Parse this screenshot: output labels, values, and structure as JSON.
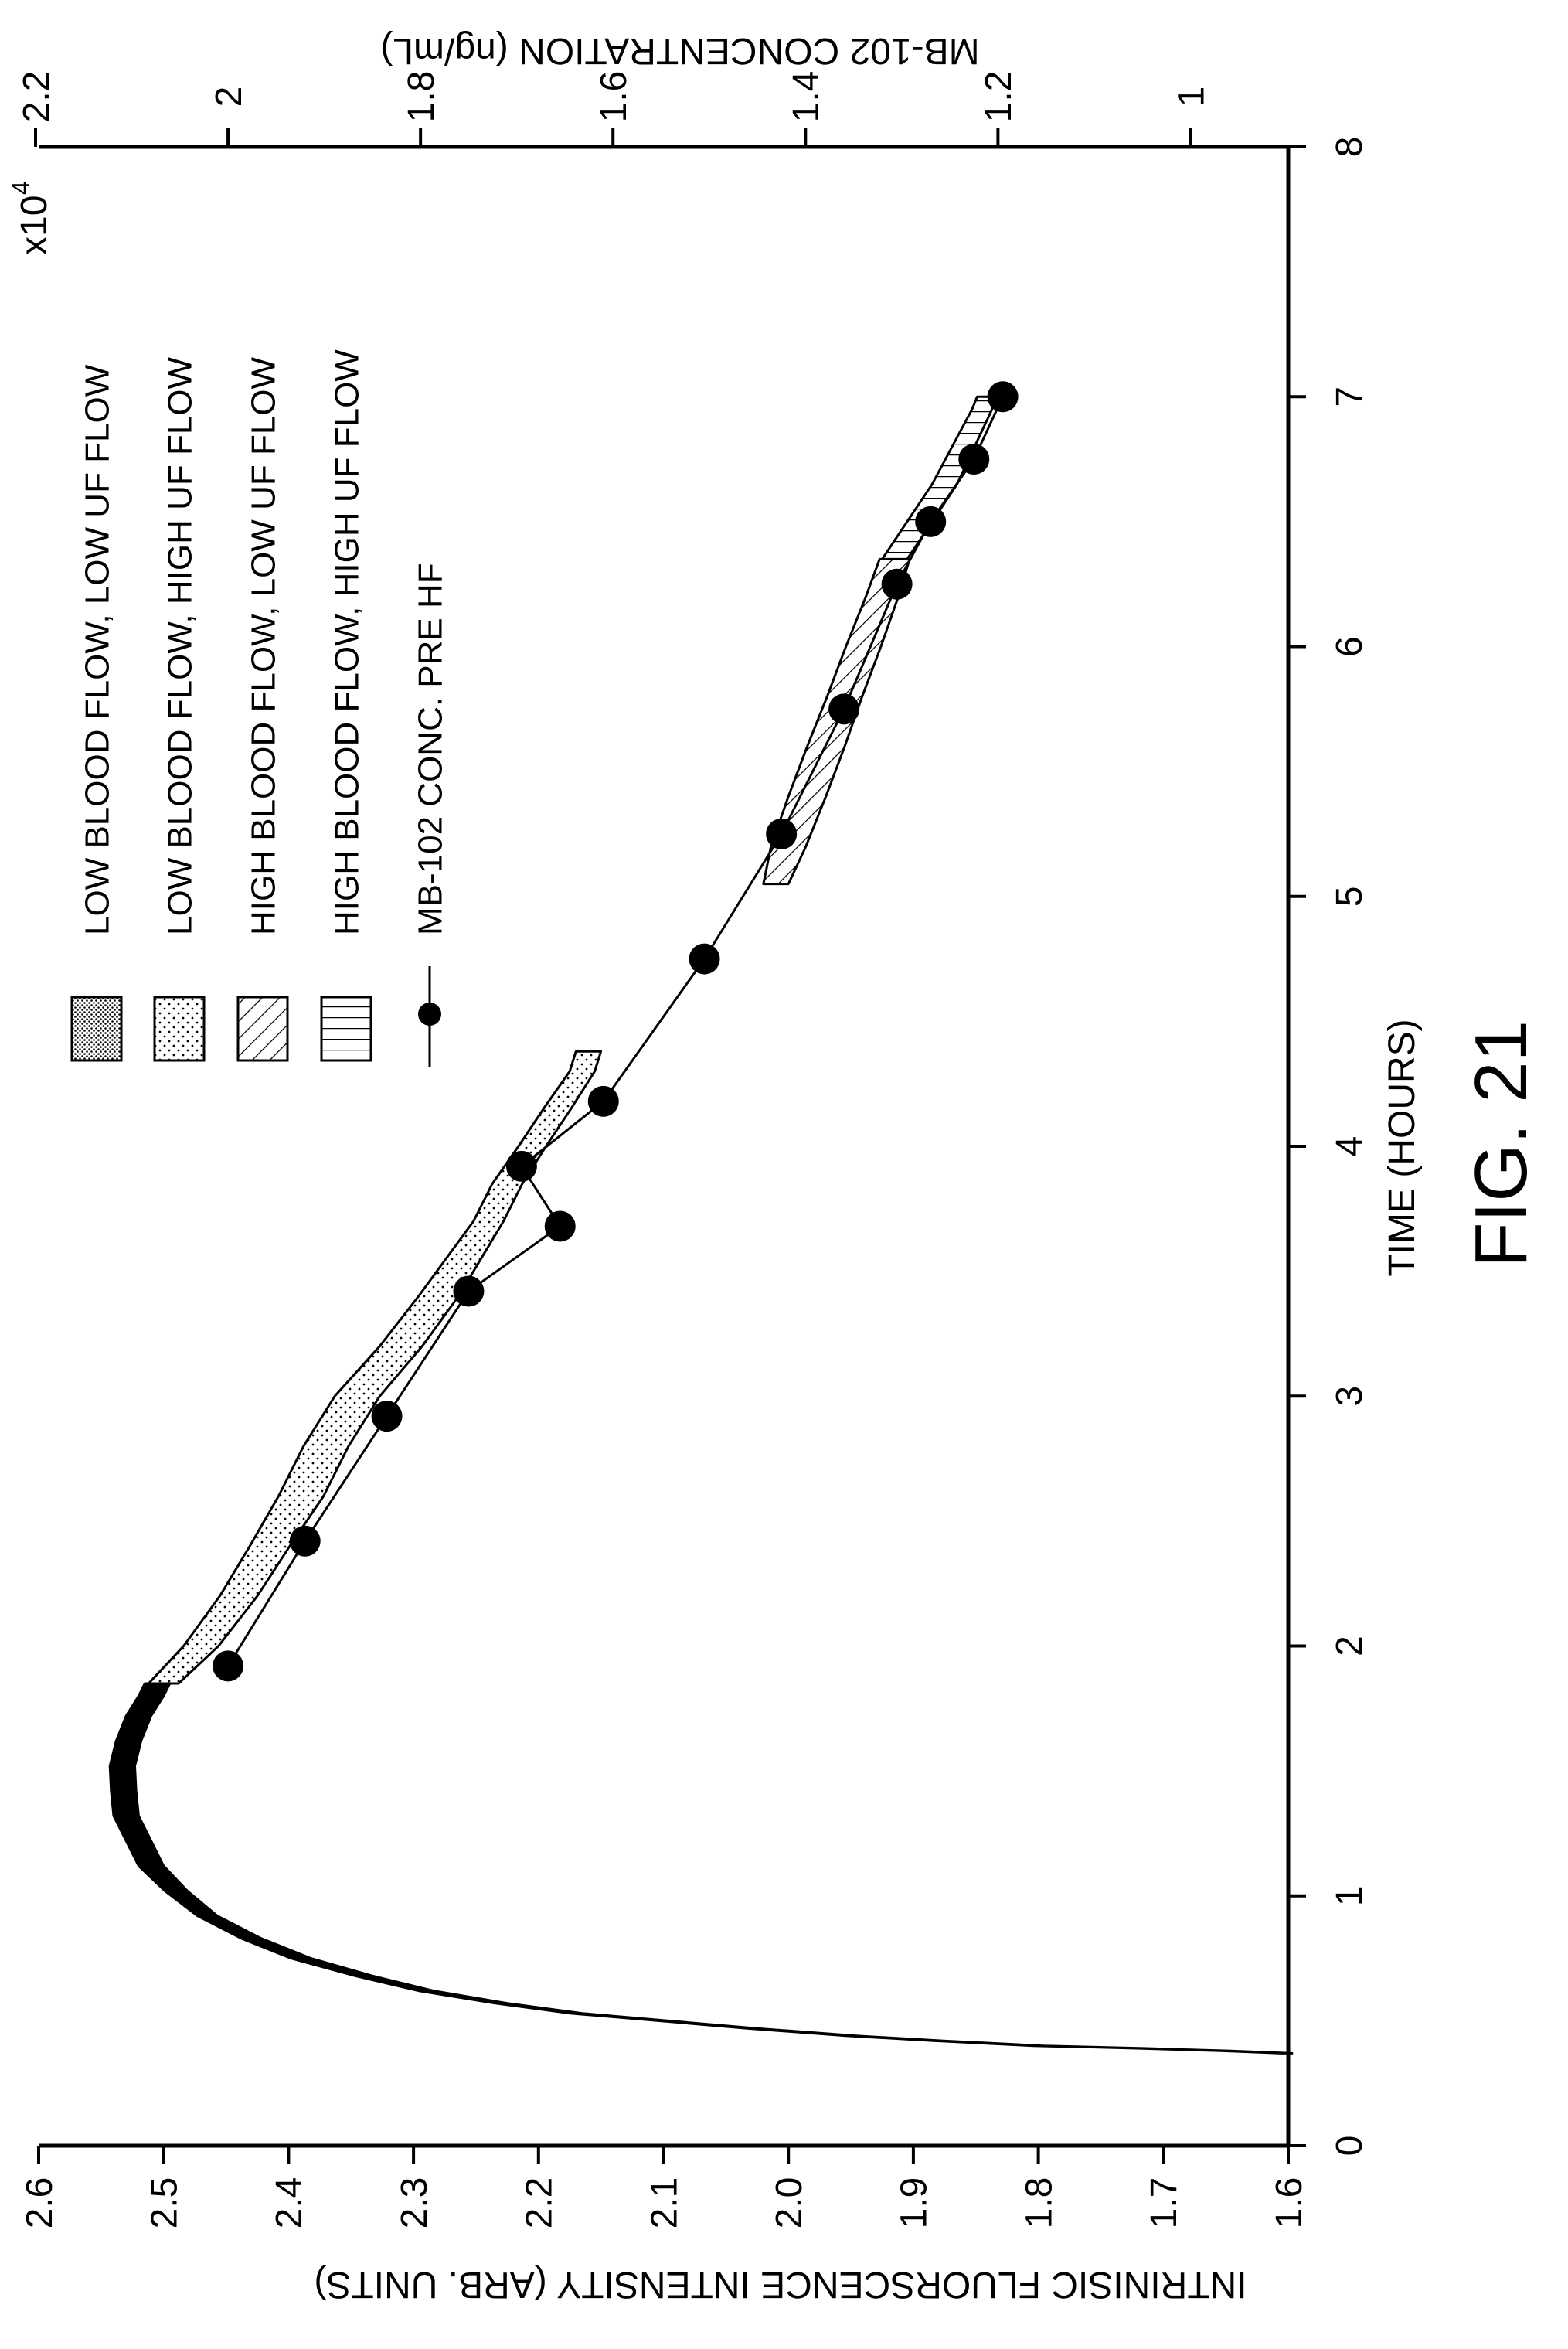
{
  "figure_label": "FIG. 21",
  "chart_data": {
    "type": "line",
    "xlabel": "TIME (HOURS)",
    "ylabel": "INTRINISIC FLUORSCENCE INTENSITY (ARB. UNITS)",
    "y2label": "MB-102 CONCENTRATION (ng/mL)",
    "y_multiplier": "x10",
    "y_multiplier_exp": "4",
    "xlim": [
      0,
      8
    ],
    "ylim": [
      1.6,
      2.6
    ],
    "y2lim": [
      0.9,
      2.2
    ],
    "x_ticks": [
      "0",
      "1",
      "2",
      "3",
      "4",
      "5",
      "6",
      "7",
      "8"
    ],
    "y_ticks": [
      "1.6",
      "1.7",
      "1.8",
      "1.9",
      "2.0",
      "2.1",
      "2.2",
      "2.3",
      "2.4",
      "2.5",
      "2.6"
    ],
    "y2_ticks": [
      "1",
      "1.2",
      "1.4",
      "1.6",
      "1.8",
      "2",
      "2.2"
    ],
    "grid": false,
    "legend_position": "top-left",
    "series": [
      {
        "name": "LOW BLOOD FLOW, LOW UF FLOW",
        "pattern": "dense-dots",
        "band": [
          {
            "x": 0.37,
            "y": 1.601,
            "w": 0.004
          },
          {
            "x": 0.38,
            "y": 1.65,
            "w": 0.004
          },
          {
            "x": 0.39,
            "y": 1.72,
            "w": 0.004
          },
          {
            "x": 0.4,
            "y": 1.8,
            "w": 0.004
          },
          {
            "x": 0.42,
            "y": 1.88,
            "w": 0.004
          },
          {
            "x": 0.44,
            "y": 1.95,
            "w": 0.004
          },
          {
            "x": 0.47,
            "y": 2.03,
            "w": 0.004
          },
          {
            "x": 0.5,
            "y": 2.1,
            "w": 0.004
          },
          {
            "x": 0.53,
            "y": 2.17,
            "w": 0.005
          },
          {
            "x": 0.57,
            "y": 2.23,
            "w": 0.005
          },
          {
            "x": 0.62,
            "y": 2.29,
            "w": 0.006
          },
          {
            "x": 0.68,
            "y": 2.34,
            "w": 0.007
          },
          {
            "x": 0.75,
            "y": 2.39,
            "w": 0.008
          },
          {
            "x": 0.83,
            "y": 2.43,
            "w": 0.008
          },
          {
            "x": 0.92,
            "y": 2.465,
            "w": 0.008
          },
          {
            "x": 1.02,
            "y": 2.49,
            "w": 0.009
          },
          {
            "x": 1.12,
            "y": 2.51,
            "w": 0.01
          },
          {
            "x": 1.22,
            "y": 2.52,
            "w": 0.01
          },
          {
            "x": 1.32,
            "y": 2.53,
            "w": 0.01
          },
          {
            "x": 1.42,
            "y": 2.532,
            "w": 0.01
          },
          {
            "x": 1.52,
            "y": 2.533,
            "w": 0.01
          },
          {
            "x": 1.62,
            "y": 2.528,
            "w": 0.01
          },
          {
            "x": 1.72,
            "y": 2.52,
            "w": 0.01
          },
          {
            "x": 1.8,
            "y": 2.51,
            "w": 0.01
          },
          {
            "x": 1.85,
            "y": 2.505,
            "w": 0.01
          }
        ]
      },
      {
        "name": "LOW BLOOD FLOW, HIGH UF FLOW",
        "pattern": "sparse-dots",
        "band": [
          {
            "x": 1.85,
            "y": 2.5,
            "w": 0.012
          },
          {
            "x": 2.0,
            "y": 2.47,
            "w": 0.014
          },
          {
            "x": 2.2,
            "y": 2.44,
            "w": 0.015
          },
          {
            "x": 2.4,
            "y": 2.415,
            "w": 0.016
          },
          {
            "x": 2.6,
            "y": 2.39,
            "w": 0.018
          },
          {
            "x": 2.8,
            "y": 2.37,
            "w": 0.018
          },
          {
            "x": 3.0,
            "y": 2.345,
            "w": 0.018
          },
          {
            "x": 3.2,
            "y": 2.31,
            "w": 0.017
          },
          {
            "x": 3.4,
            "y": 2.28,
            "w": 0.016
          },
          {
            "x": 3.55,
            "y": 2.26,
            "w": 0.014
          },
          {
            "x": 3.7,
            "y": 2.24,
            "w": 0.012
          },
          {
            "x": 3.85,
            "y": 2.225,
            "w": 0.012
          },
          {
            "x": 4.0,
            "y": 2.205,
            "w": 0.011
          },
          {
            "x": 4.15,
            "y": 2.185,
            "w": 0.011
          },
          {
            "x": 4.3,
            "y": 2.165,
            "w": 0.01
          },
          {
            "x": 4.38,
            "y": 2.16,
            "w": 0.01
          }
        ]
      },
      {
        "name": "HIGH BLOOD FLOW, LOW UF FLOW",
        "pattern": "diagonal-hatch",
        "band": [
          {
            "x": 5.05,
            "y": 2.01,
            "w": 0.01
          },
          {
            "x": 5.2,
            "y": 2.0,
            "w": 0.014
          },
          {
            "x": 5.4,
            "y": 1.985,
            "w": 0.015
          },
          {
            "x": 5.6,
            "y": 1.97,
            "w": 0.015
          },
          {
            "x": 5.8,
            "y": 1.955,
            "w": 0.014
          },
          {
            "x": 6.0,
            "y": 1.94,
            "w": 0.014
          },
          {
            "x": 6.2,
            "y": 1.925,
            "w": 0.013
          },
          {
            "x": 6.35,
            "y": 1.915,
            "w": 0.012
          }
        ]
      },
      {
        "name": "HIGH BLOOD FLOW, HIGH UF FLOW",
        "pattern": "vertical-hatch",
        "band": [
          {
            "x": 6.35,
            "y": 1.915,
            "w": 0.01
          },
          {
            "x": 6.5,
            "y": 1.895,
            "w": 0.01
          },
          {
            "x": 6.65,
            "y": 1.875,
            "w": 0.01
          },
          {
            "x": 6.8,
            "y": 1.86,
            "w": 0.009
          },
          {
            "x": 6.95,
            "y": 1.845,
            "w": 0.008
          },
          {
            "x": 7.0,
            "y": 1.842,
            "w": 0.007
          }
        ]
      },
      {
        "name": "MB-102 CONC. PRE HF",
        "axis": "right",
        "marker": "filled-circle",
        "x": [
          1.92,
          2.42,
          2.92,
          3.42,
          3.68,
          3.92,
          4.18,
          4.75,
          5.25,
          5.75,
          6.25,
          6.5,
          6.75,
          7.0
        ],
        "y": [
          2.0,
          1.92,
          1.835,
          1.75,
          1.655,
          1.695,
          1.61,
          1.505,
          1.425,
          1.36,
          1.305,
          1.27,
          1.225,
          1.195
        ]
      }
    ]
  }
}
